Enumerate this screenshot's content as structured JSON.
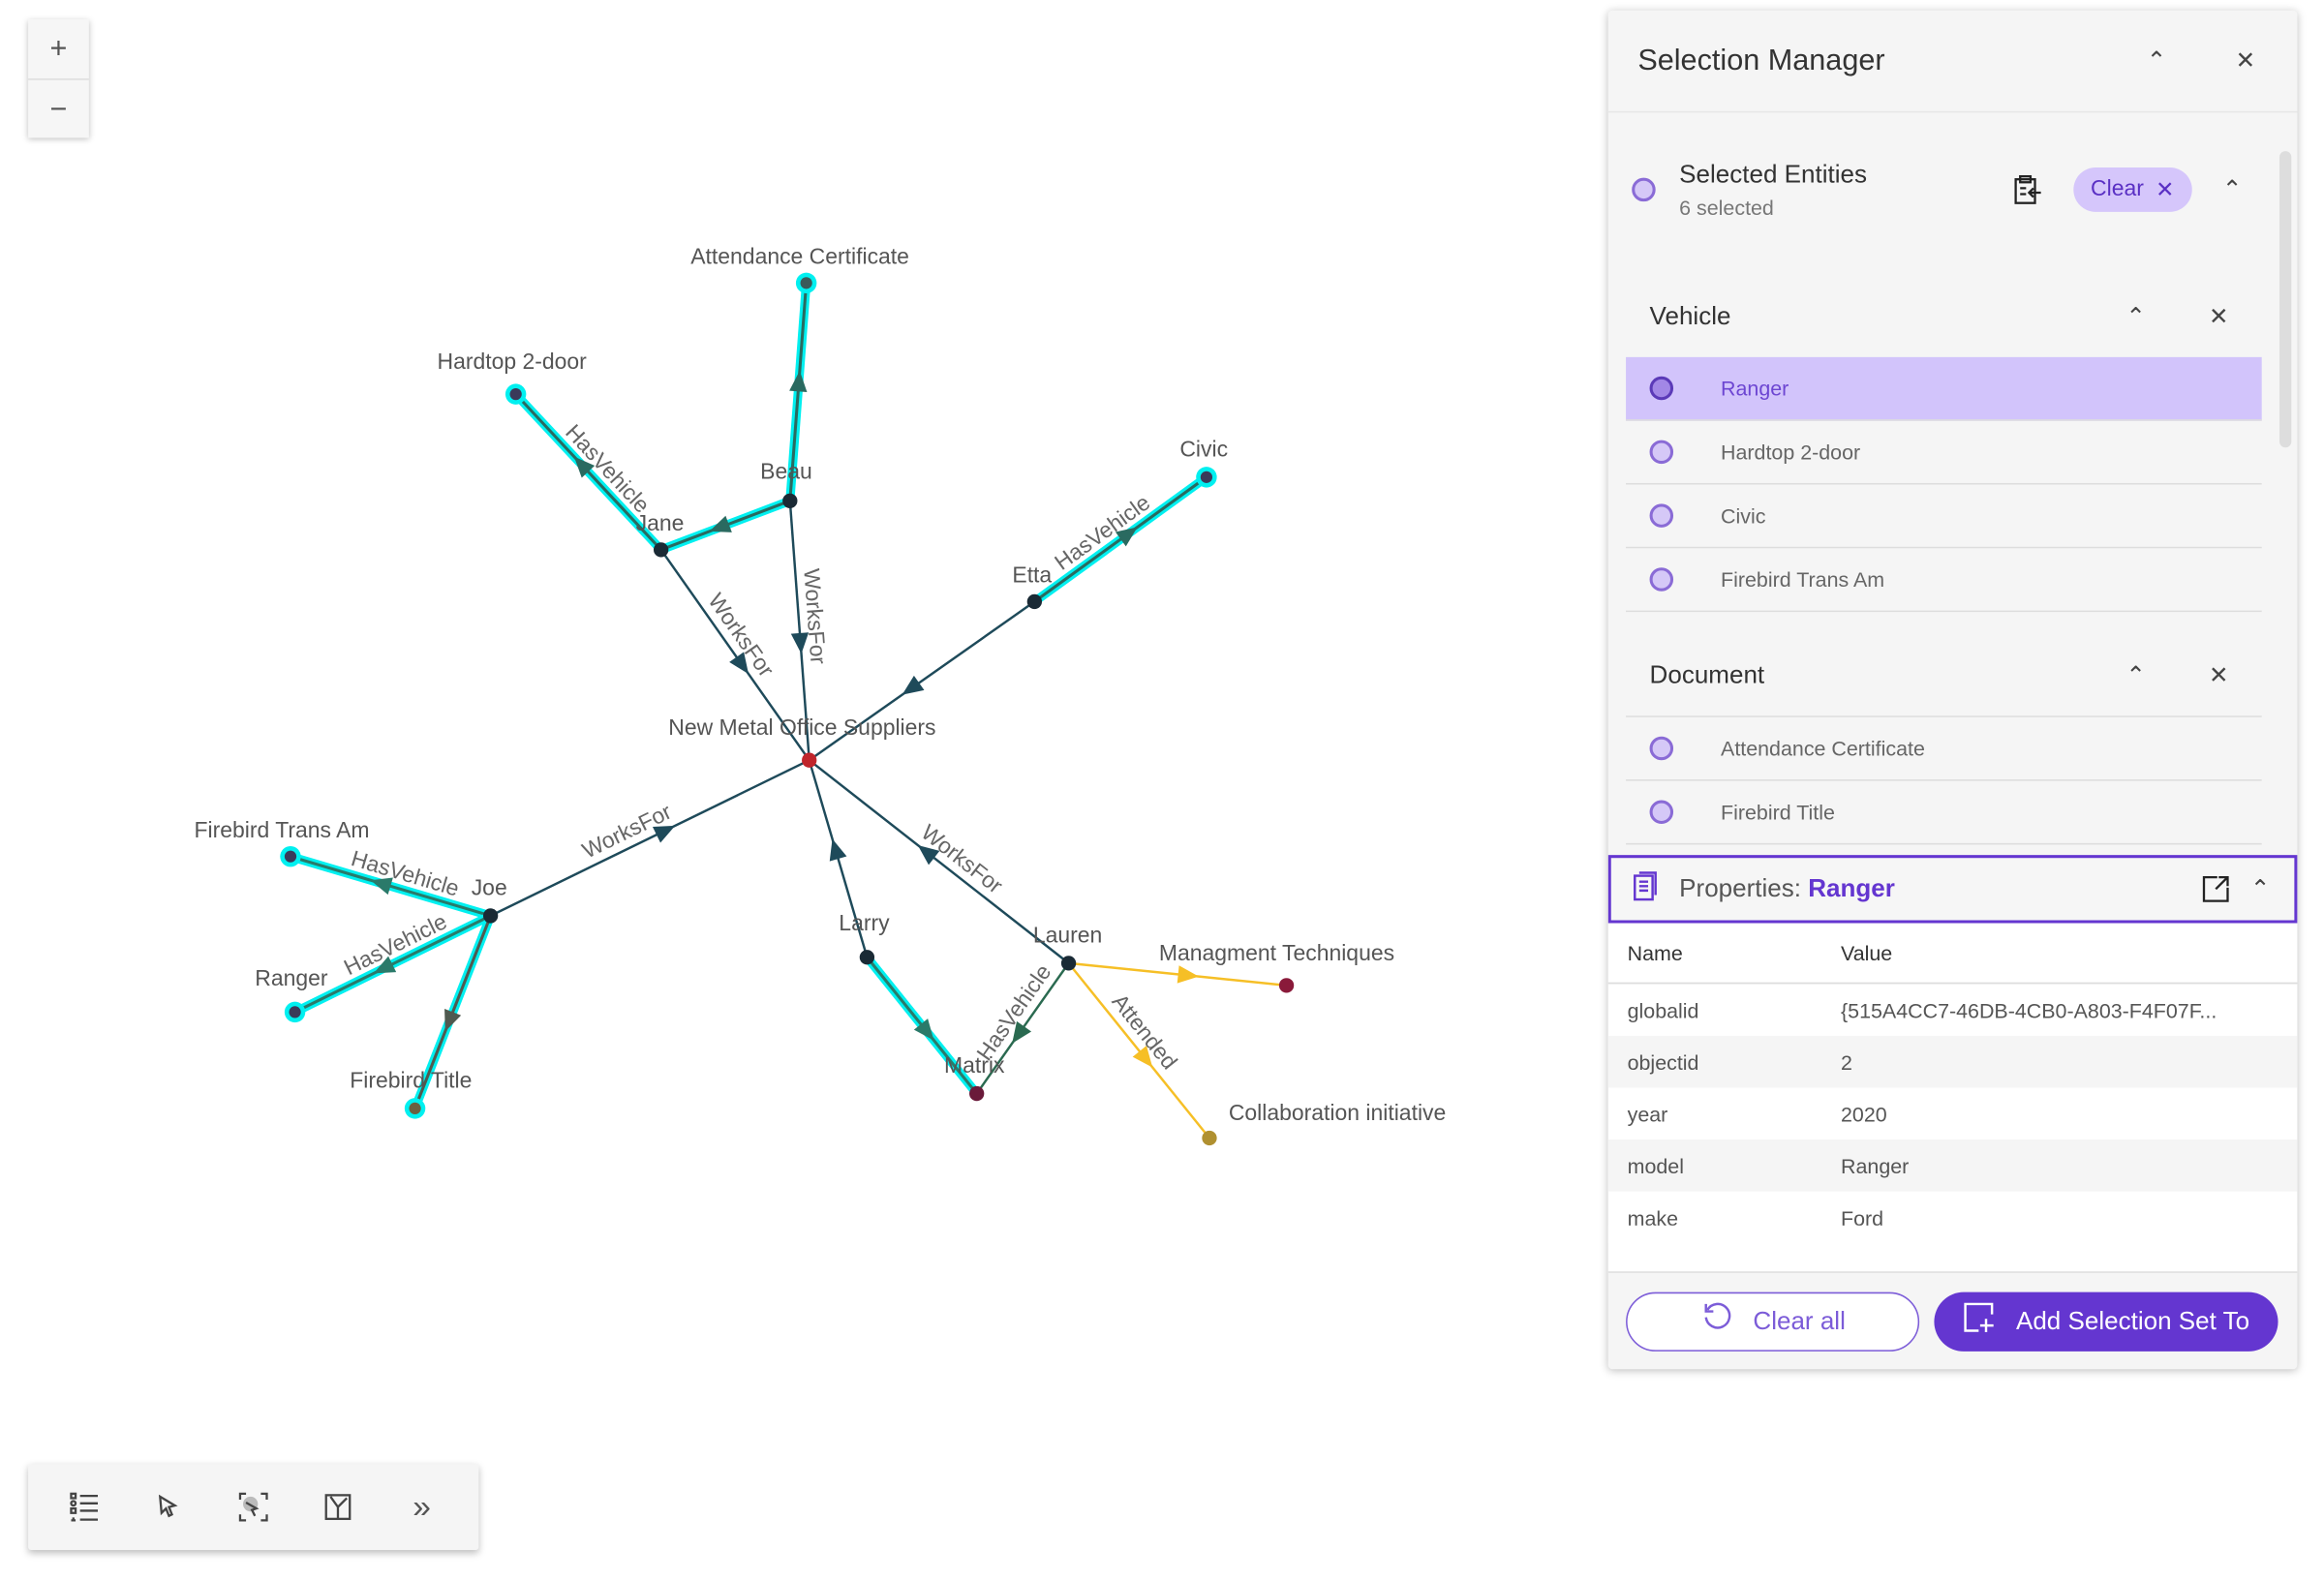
{
  "zoom": {
    "in": "+",
    "out": "−"
  },
  "graph": {
    "nodes": [
      {
        "id": "nmos",
        "label": "New Metal Office Suppliers",
        "color": "#c0252b"
      },
      {
        "id": "att",
        "label": "Attendance Certificate",
        "color": "#3a5a5a",
        "selected": true
      },
      {
        "id": "hard",
        "label": "Hardtop 2-door",
        "color": "#3a3a5a",
        "selected": true
      },
      {
        "id": "beau",
        "label": "Beau",
        "color": "#1a2a35"
      },
      {
        "id": "jane",
        "label": "Jane",
        "color": "#1a2a35"
      },
      {
        "id": "civic",
        "label": "Civic",
        "color": "#3a3a5a",
        "selected": true
      },
      {
        "id": "etta",
        "label": "Etta",
        "color": "#1a2a35"
      },
      {
        "id": "joe",
        "label": "Joe",
        "color": "#1a2a35"
      },
      {
        "id": "fta",
        "label": "Firebird Trans Am",
        "color": "#3a3a5a",
        "selected": true
      },
      {
        "id": "ranger",
        "label": "Ranger",
        "color": "#3a3a5a",
        "selected": true
      },
      {
        "id": "ftitle",
        "label": "Firebird Title",
        "color": "#6a6040",
        "selected": true
      },
      {
        "id": "larry",
        "label": "Larry",
        "color": "#1a2a35"
      },
      {
        "id": "matrix",
        "label": "Matrix",
        "color": "#6a1a3a"
      },
      {
        "id": "lauren",
        "label": "Lauren",
        "color": "#1a2a35"
      },
      {
        "id": "mgmt",
        "label": "Managment Techniques",
        "color": "#8a1a3a"
      },
      {
        "id": "collab",
        "label": "Collaboration initiative",
        "color": "#b09030"
      }
    ],
    "edges": [
      {
        "from": "beau",
        "to": "att",
        "label": "",
        "color": "#2a6a60",
        "highlight": true
      },
      {
        "from": "jane",
        "to": "hard",
        "label": "HasVehicle",
        "color": "#2a6a60",
        "highlight": true
      },
      {
        "from": "beau",
        "to": "jane",
        "label": "",
        "color": "#2a6a60",
        "highlight": true
      },
      {
        "from": "beau",
        "to": "nmos",
        "label": "WorksFor",
        "color": "#1e4a5a"
      },
      {
        "from": "jane",
        "to": "nmos",
        "label": "WorksFor",
        "color": "#1e4a5a"
      },
      {
        "from": "etta",
        "to": "civic",
        "label": "HasVehicle",
        "color": "#2a6a60",
        "highlight": true
      },
      {
        "from": "etta",
        "to": "nmos",
        "label": "",
        "color": "#1e4a5a"
      },
      {
        "from": "joe",
        "to": "nmos",
        "label": "WorksFor",
        "color": "#1e4a5a"
      },
      {
        "from": "joe",
        "to": "fta",
        "label": "HasVehicle",
        "color": "#2a7a6a",
        "highlight": true
      },
      {
        "from": "joe",
        "to": "ranger",
        "label": "HasVehicle",
        "color": "#2a7a6a",
        "highlight": true
      },
      {
        "from": "joe",
        "to": "ftitle",
        "label": "",
        "color": "#505a50",
        "highlight": true
      },
      {
        "from": "larry",
        "to": "nmos",
        "label": "",
        "color": "#1e4a5a"
      },
      {
        "from": "larry",
        "to": "matrix",
        "label": "",
        "color": "#2a7a6a",
        "highlight": true
      },
      {
        "from": "lauren",
        "to": "nmos",
        "label": "WorksFor",
        "color": "#1e4a5a"
      },
      {
        "from": "lauren",
        "to": "matrix",
        "label": "HasVehicle",
        "color": "#2a6a50"
      },
      {
        "from": "lauren",
        "to": "mgmt",
        "label": "",
        "color": "#f6bf26"
      },
      {
        "from": "lauren",
        "to": "collab",
        "label": "Attended",
        "color": "#f6bf26"
      }
    ],
    "highlight_color": "#00f0f0"
  },
  "toolbar": {
    "icons": [
      "legend-list-icon",
      "select-pointer-icon",
      "lasso-select-icon",
      "layout-icon",
      "expand-chevrons-icon"
    ],
    "more": "»"
  },
  "panel": {
    "title": "Selection Manager",
    "selected": {
      "title": "Selected Entities",
      "count": "6 selected",
      "clear": "Clear"
    },
    "groups": [
      {
        "name": "Vehicle",
        "items": [
          "Ranger",
          "Hardtop 2-door",
          "Civic",
          "Firebird Trans Am"
        ],
        "active": "Ranger"
      },
      {
        "name": "Document",
        "items": [
          "Attendance Certificate",
          "Firebird Title"
        ]
      }
    ],
    "properties": {
      "prefix": "Properties: ",
      "entity": "Ranger",
      "columns": [
        "Name",
        "Value"
      ],
      "rows": [
        [
          "globalid",
          "{515A4CC7-46DB-4CB0-A803-F4F07F..."
        ],
        [
          "objectid",
          "2"
        ],
        [
          "year",
          "2020"
        ],
        [
          "model",
          "Ranger"
        ],
        [
          "make",
          "Ford"
        ]
      ]
    },
    "clear_all": "Clear all",
    "add_set": "Add Selection Set To",
    "accent": "#6436d0"
  }
}
